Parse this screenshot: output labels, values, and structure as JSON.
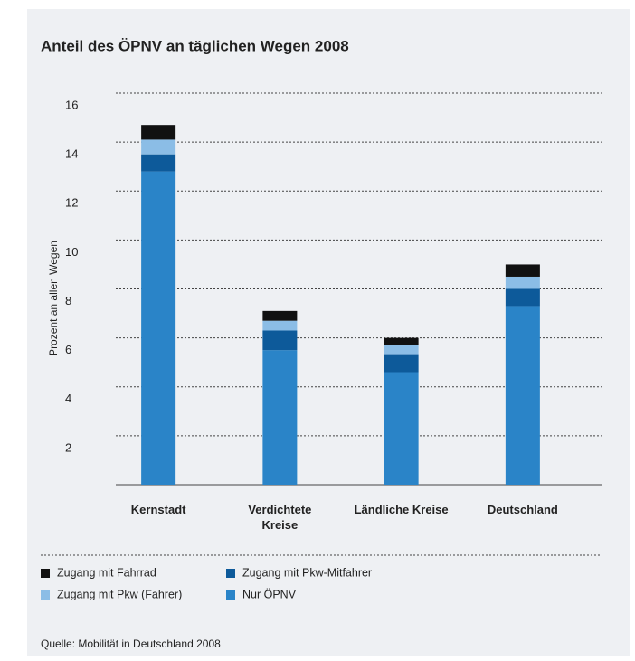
{
  "chart_data": {
    "type": "stacked_bar",
    "title": "Anteil des ÖPNV an täglichen Wegen 2008",
    "y_label": "Prozent an allen Wegen",
    "categories": [
      "Kernstadt",
      "Verdichtete Kreise",
      "Ländliche Kreise",
      "Deutschland"
    ],
    "series": [
      {
        "name": "Nur ÖPNV",
        "color": "#2a84c8",
        "values": [
          12.8,
          5.5,
          4.6,
          7.3
        ]
      },
      {
        "name": "Zugang mit Pkw-Mitfahrer",
        "color": "#0d5a9a",
        "values": [
          0.7,
          0.8,
          0.7,
          0.7
        ]
      },
      {
        "name": "Zugang mit Pkw (Fahrer)",
        "color": "#8bbde6",
        "values": [
          0.6,
          0.4,
          0.4,
          0.5
        ]
      },
      {
        "name": "Zugang mit Fahrrad",
        "color": "#111111",
        "values": [
          0.6,
          0.4,
          0.3,
          0.5
        ]
      }
    ],
    "ylim": [
      0,
      16
    ],
    "yticks": [
      2,
      4,
      6,
      8,
      10,
      12,
      14,
      16
    ],
    "grid": true,
    "source": "Quelle: Mobilität in Deutschland 2008"
  }
}
